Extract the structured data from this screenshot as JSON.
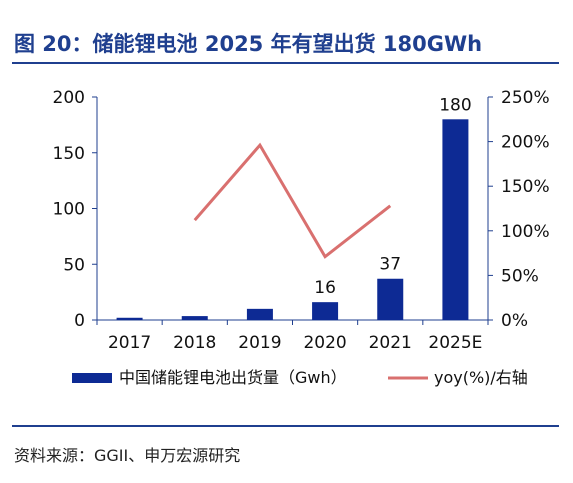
{
  "figure": {
    "title": "图 20：储能锂电池 2025 年有望出货 180GWh",
    "source": "资料来源：GGII、申万宏源研究"
  },
  "colors": {
    "bar": "#0d2a94",
    "line": "#d9706f",
    "title": "#1f3f8f",
    "axis": "#1f3f8f",
    "text": "#111111"
  },
  "chart_data": {
    "type": "bar",
    "title": "",
    "categories": [
      "2017",
      "2018",
      "2019",
      "2020",
      "2021",
      "2025E"
    ],
    "series": [
      {
        "name": "中国储能锂电池出货量（Gwh）",
        "type": "bar",
        "axis": "left",
        "values": [
          2,
          3.5,
          10,
          16,
          37,
          180
        ],
        "data_labels": {
          "3": "16",
          "4": "37",
          "5": "180"
        }
      },
      {
        "name": "yoy(%)/右轴",
        "type": "line",
        "axis": "right",
        "values": [
          null,
          112,
          196,
          71,
          128,
          null
        ]
      }
    ],
    "y_left": {
      "min": 0,
      "max": 200,
      "ticks": [
        "0",
        "50",
        "100",
        "150",
        "200"
      ]
    },
    "y_right": {
      "min": 0,
      "max": 250,
      "ticks": [
        "0%",
        "50%",
        "100%",
        "150%",
        "200%",
        "250%"
      ]
    },
    "xlabel": "",
    "ylabel": "",
    "legend_position": "bottom",
    "grid": false
  }
}
